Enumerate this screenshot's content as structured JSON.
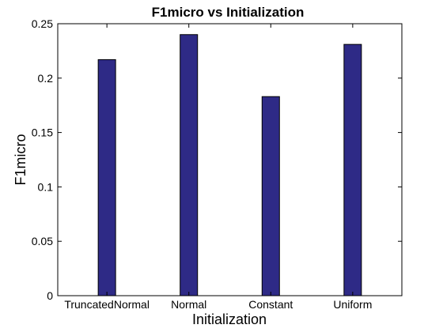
{
  "chart_data": {
    "type": "bar",
    "title": "F1micro vs Initialization",
    "xlabel": "Initialization",
    "ylabel": "F1micro",
    "categories": [
      "TruncatedNormal",
      "Normal",
      "Constant",
      "Uniform"
    ],
    "values": [
      0.217,
      0.24,
      0.183,
      0.231
    ],
    "ylim": [
      0,
      0.25
    ],
    "yticks": [
      0,
      0.05,
      0.1,
      0.15,
      0.2,
      0.25
    ],
    "ytick_labels": [
      "0",
      "0.05",
      "0.1",
      "0.15",
      "0.2",
      "0.25"
    ],
    "grid": false,
    "legend": "none",
    "colors": {
      "bar_fill": "#2e2a86",
      "bar_stroke": "#000000",
      "axis": "#000000",
      "background": "#ffffff"
    }
  }
}
